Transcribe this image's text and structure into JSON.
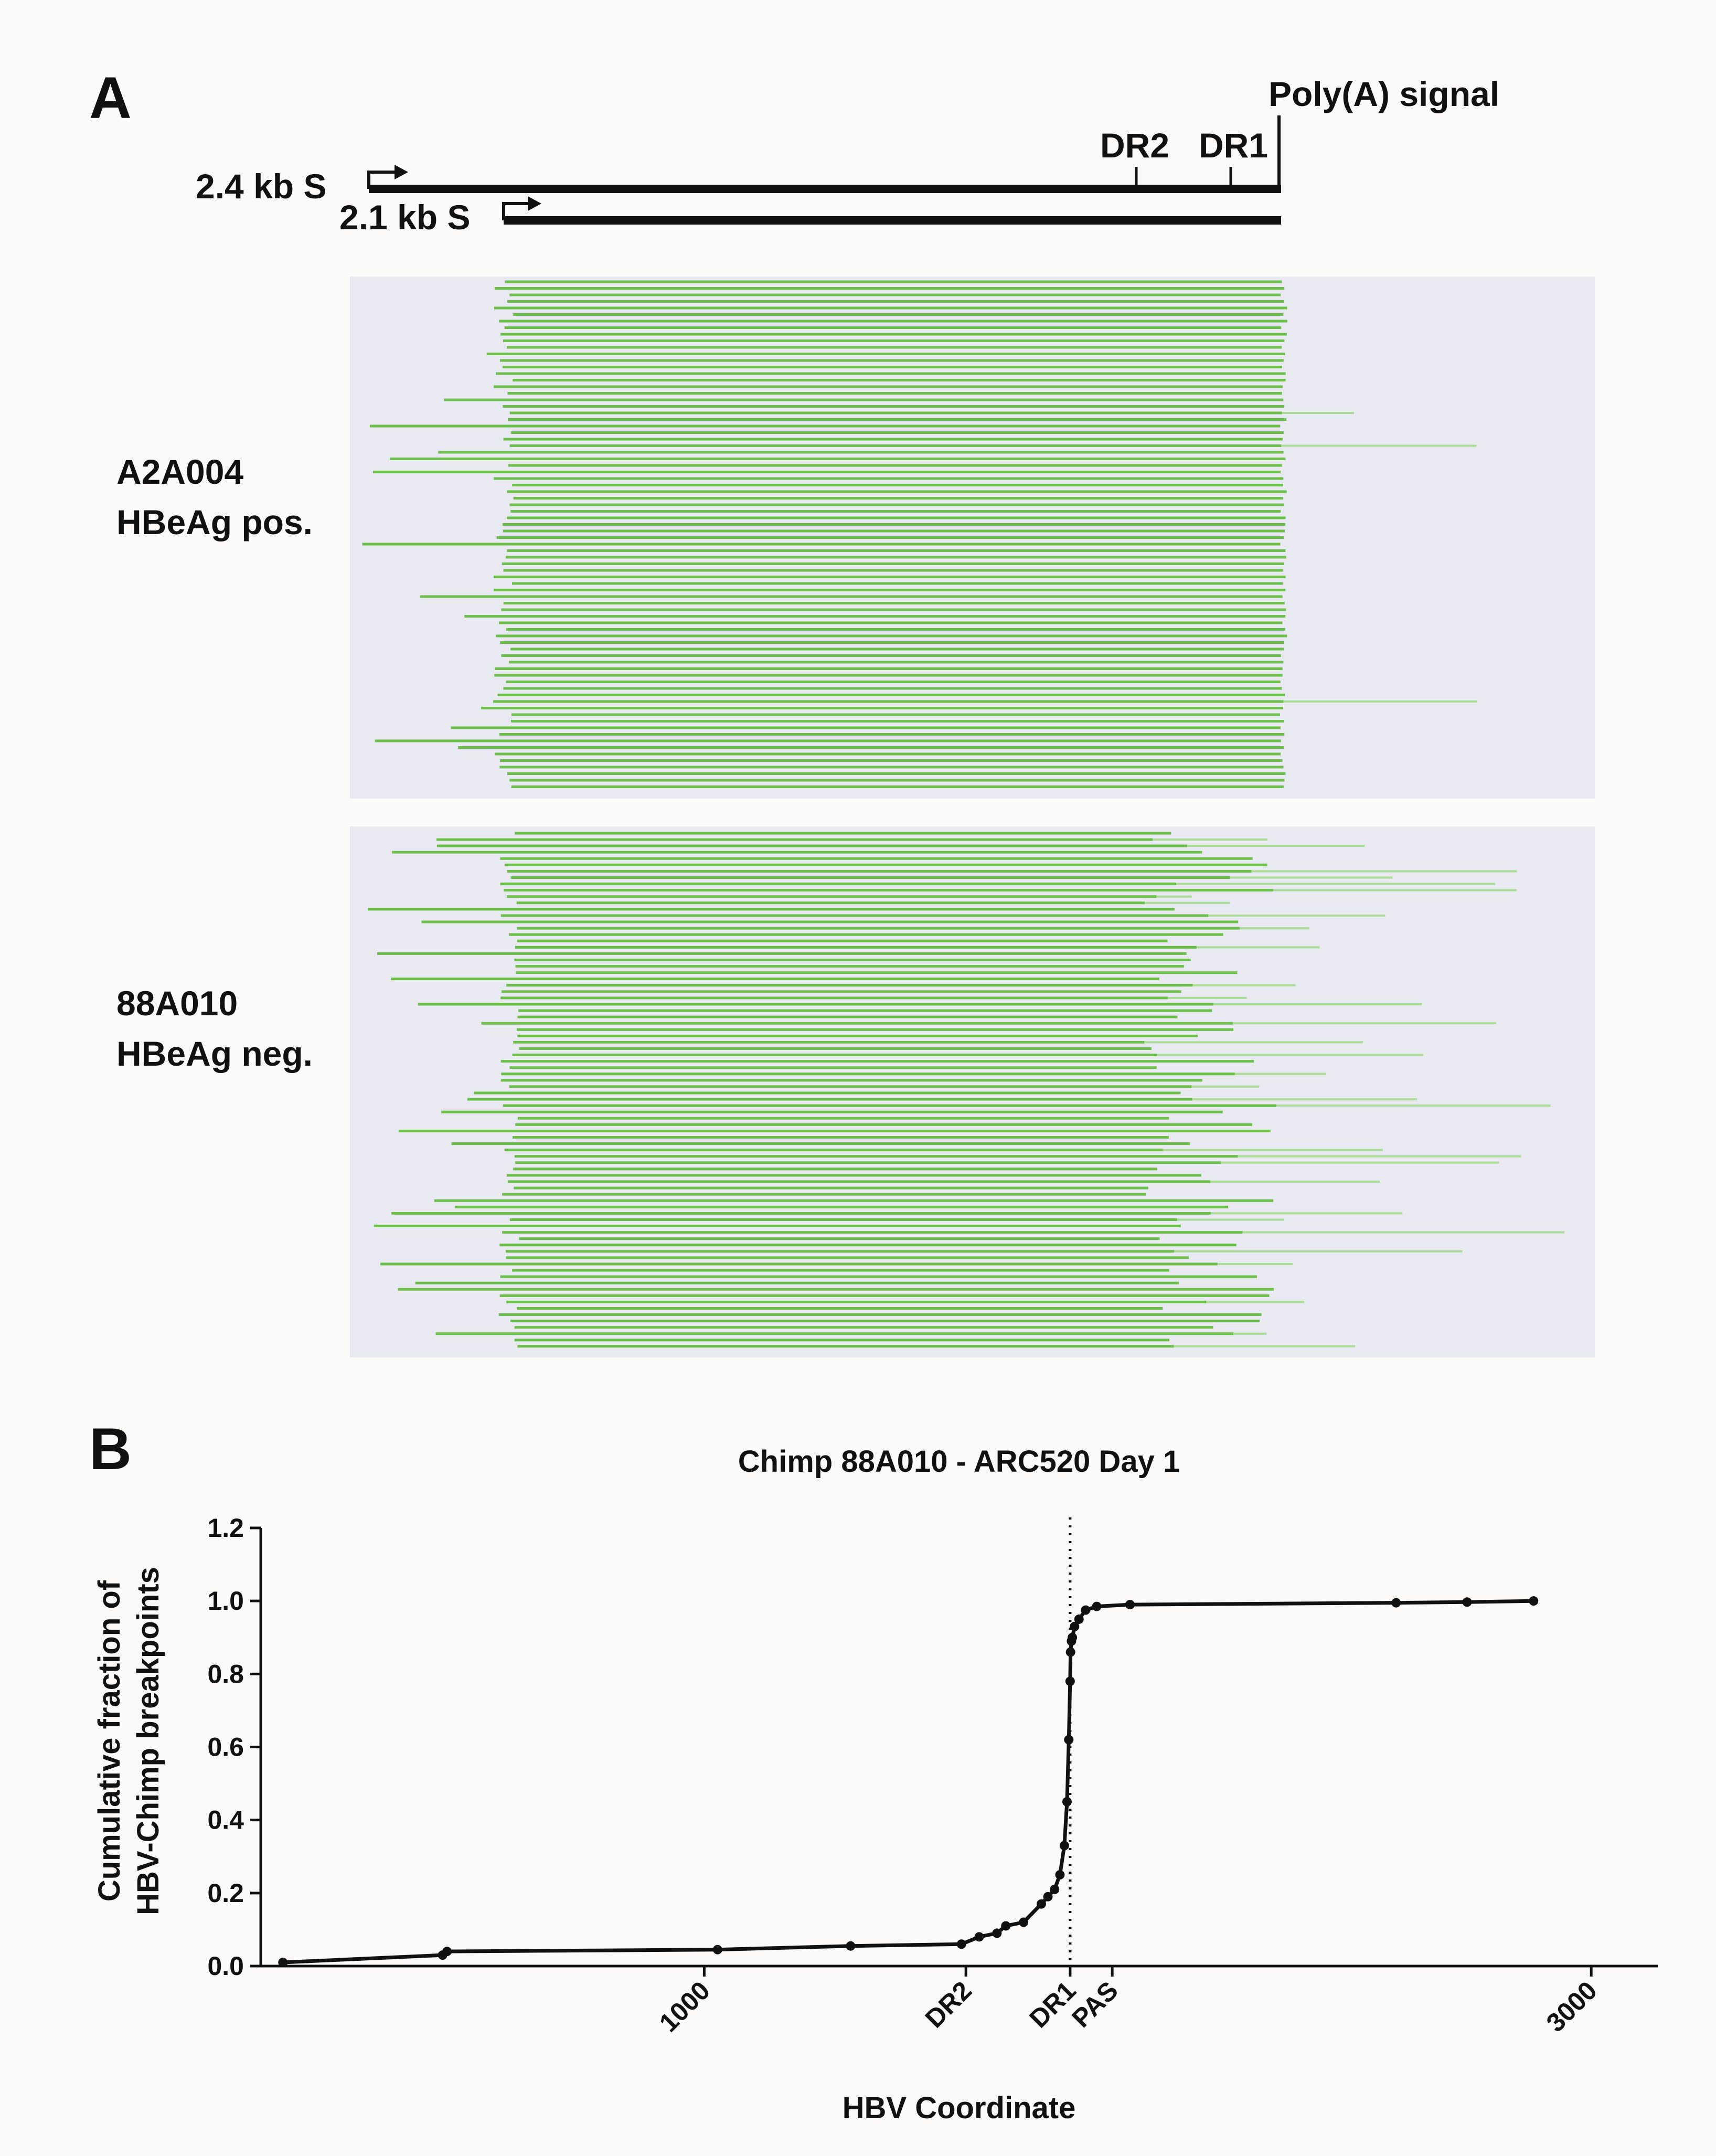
{
  "panels": {
    "a": "A",
    "b": "B"
  },
  "transcripts": {
    "s24": "2.4 kb S",
    "s21": "2.1 kb S",
    "dr2": "DR2",
    "dr1": "DR1",
    "polya": "Poly(A) signal"
  },
  "samples": {
    "a2a004_name": "A2A004",
    "a2a004_status": "HBeAg pos.",
    "a88_name": "88A010",
    "a88_status": "HBeAg neg."
  },
  "colors": {
    "read": "#6cc04a",
    "read_light": "#a9dc94",
    "track_bg": "#e9e9f1",
    "line": "#111111",
    "page": "#fbfaf9"
  },
  "chart_data": {
    "type": "line",
    "title": "Chimp 88A010 - ARC520 Day 1",
    "xlabel": "HBV Coordinate",
    "ylabel_line1": "Cumulative fraction of",
    "ylabel_line2": "HBV-Chimp breakpoints",
    "ylim": [
      0,
      1.2
    ],
    "yticks": [
      "0.0",
      "0.2",
      "0.4",
      "0.6",
      "0.8",
      "1.0",
      "1.2"
    ],
    "xticks": [
      {
        "label": "1000",
        "x": 1000
      },
      {
        "label": "DR2",
        "x": 1590
      },
      {
        "label": "DR1",
        "x": 1825
      },
      {
        "label": "PAS",
        "x": 1920
      },
      {
        "label": "3000",
        "x": 3000
      }
    ],
    "vline_x": 1825,
    "x": [
      50,
      410,
      420,
      1030,
      1330,
      1580,
      1620,
      1660,
      1680,
      1720,
      1760,
      1775,
      1790,
      1802,
      1812,
      1818,
      1822,
      1825,
      1826,
      1828,
      1830,
      1835,
      1845,
      1860,
      1885,
      1960,
      2560,
      2720,
      2870
    ],
    "y": [
      0.01,
      0.03,
      0.04,
      0.045,
      0.055,
      0.06,
      0.08,
      0.09,
      0.11,
      0.12,
      0.17,
      0.19,
      0.21,
      0.25,
      0.33,
      0.45,
      0.62,
      0.78,
      0.86,
      0.89,
      0.9,
      0.93,
      0.95,
      0.975,
      0.985,
      0.99,
      0.995,
      0.997,
      1.0
    ]
  }
}
